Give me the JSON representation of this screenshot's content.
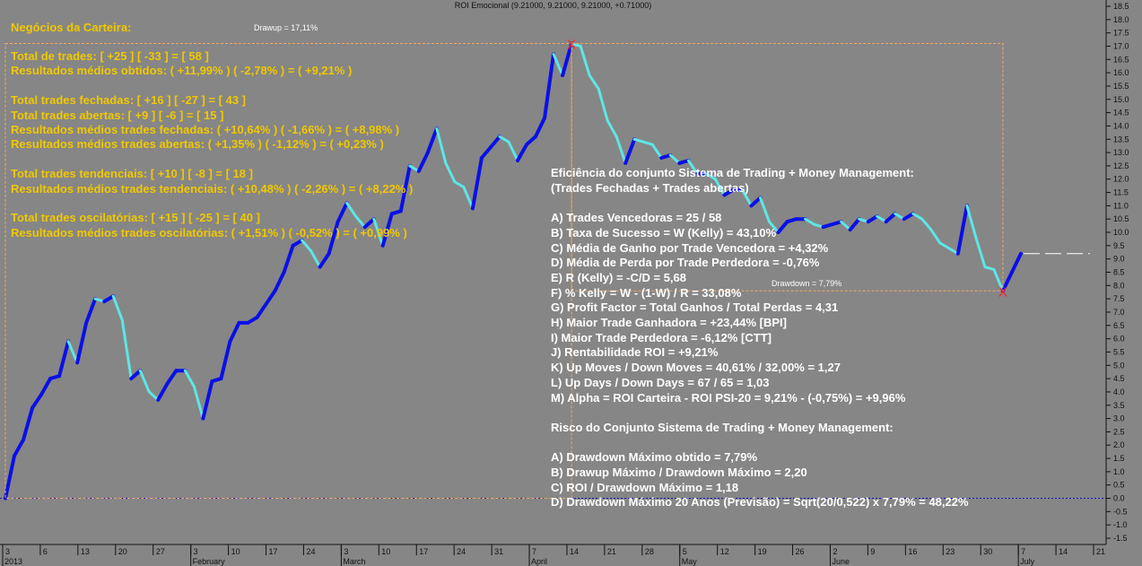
{
  "chart_data": {
    "type": "line",
    "title": "ROI Emocional (9.21000, 9.21000, 9.21000, +0.71000)",
    "ylim": [
      -1.5,
      18.5
    ],
    "ytick_step": 0.5,
    "zero_line": 0.0,
    "grid": false,
    "x_date_labels": [
      "3",
      "6",
      "13",
      "20",
      "27",
      "3",
      "10",
      "17",
      "24",
      "3",
      "10",
      "17",
      "24",
      "31",
      "7",
      "14",
      "21",
      "28",
      "5",
      "12",
      "19",
      "26",
      "2",
      "9",
      "16",
      "23",
      "30",
      "7",
      "14",
      "21"
    ],
    "x_month_labels": [
      "2013",
      "February",
      "March",
      "April",
      "May",
      "June",
      "July"
    ],
    "series": [
      {
        "values": [
          0.0,
          1.6,
          2.2,
          3.4,
          3.9,
          4.5,
          4.6,
          5.9,
          5.1,
          6.6,
          7.5,
          7.4,
          7.6,
          6.7,
          4.5,
          4.8,
          4.0,
          3.7,
          4.3,
          4.8,
          4.8,
          4.2,
          3.0,
          4.4,
          4.5,
          5.9,
          6.6,
          6.6,
          6.8,
          7.3,
          7.8,
          8.5,
          9.5,
          9.7,
          9.3,
          8.7,
          9.2,
          10.4,
          11.1,
          10.6,
          10.2,
          10.5,
          9.5,
          10.7,
          10.8,
          12.5,
          12.3,
          13.0,
          13.9,
          12.6,
          11.9,
          11.7,
          10.9,
          12.8,
          13.2,
          13.6,
          13.4,
          12.7,
          13.3,
          13.6,
          14.3,
          16.7,
          15.9,
          17.1,
          17.0,
          15.9,
          15.4,
          14.2,
          13.6,
          12.6,
          13.5,
          13.4,
          13.3,
          12.8,
          12.9,
          12.6,
          12.7,
          12.2,
          12.2,
          12.0,
          11.4,
          11.6,
          11.6,
          11.0,
          11.3,
          10.4,
          10.0,
          10.4,
          10.5,
          10.5,
          10.3,
          10.2,
          10.3,
          10.4,
          10.1,
          10.5,
          10.4,
          10.6,
          10.4,
          10.7,
          10.5,
          10.7,
          10.5,
          10.1,
          9.6,
          9.4,
          9.2,
          11.0,
          9.8,
          8.7,
          8.6,
          7.8,
          8.5,
          9.2
        ],
        "colors": [
          "#0a10e6",
          "#5ee6e6"
        ]
      }
    ],
    "markers": [
      {
        "label": "X",
        "value": 17.1
      },
      {
        "label": "X",
        "value": 7.8
      }
    ],
    "annotations": {
      "drawup": "Drawup = 17,11%",
      "drawdown": "Drawdown = 7,79%"
    },
    "dashed_value": 9.2
  },
  "left_panel": {
    "title": "Negócios da Carteira:",
    "lines": [
      "Total de trades: [ +25 ] [ -33 ] = [ 58 ]",
      "Resultados médios obtidos: ( +11,99% ) ( -2,78% ) = ( +9,21% )",
      "",
      "Total trades fechadas: [ +16 ] [ -27 ] = [ 43 ]",
      "Total trades abertas: [ +9 ] [ -6 ] = [ 15 ]",
      "Resultados médios trades fechadas: ( +10,64% ) ( -1,66% ) = ( +8,98% )",
      "Resultados médios trades abertas: ( +1,35% ) ( -1,12% ) = ( +0,23% )",
      "",
      "Total trades tendenciais: [ +10 ] [ -8 ] = [ 18 ]",
      "Resultados médios trades tendenciais: ( +10,48% ) ( -2,26% ) = ( +8,22% )",
      "",
      "Total trades oscilatórias: [ +15 ] [ -25 ] = [ 40 ]",
      "Resultados médios trades oscilatórias: ( +1,51% ) ( -0,52% ) = ( +0,99% )"
    ]
  },
  "right_panel": {
    "lines": [
      "Eficiência do conjunto Sistema de Trading + Money Management:",
      "(Trades Fechadas + Trades abertas)",
      "",
      "A) Trades Vencedoras = 25 / 58",
      "B) Taxa de Sucesso = W (Kelly) = 43,10%",
      "C) Média de Ganho por Trade Vencedora = +4,32%",
      "D) Média de Perda por Trade Perdedora = -0,76%",
      "E) R (Kelly) = -C/D = 5,68",
      "F) % Kelly = W - (1-W) / R = 33,08%",
      "G) Profit Factor = Total Ganhos / Total Perdas = 4,31",
      "H) Maior Trade Ganhadora = +23,44%   [BPI]",
      "I) Maior Trade Perdedora = -6,12%   [CTT]",
      "J) Rentabilidade ROI = +9,21%",
      "K) Up Moves / Down Moves = 40,61% / 32,00% = 1,27",
      "L) Up Days / Down Days = 67 / 65 = 1,03",
      "M) Alpha = ROI Carteira - ROI PSI-20 = 9,21% - (-0,75%) = +9,96%",
      "",
      "Risco do Conjunto Sistema de Trading + Money Management:",
      "",
      "A) Drawdown Máximo obtido = 7,79%",
      "B) Drawup Máximo / Drawdown Máximo = 2,20",
      "C) ROI / Drawdown Máximo = 1,18",
      "D) Drawdown Máximo 20 Anos (Previsão) = Sqrt(20/0,522) x 7,79% = 48,22%"
    ]
  }
}
